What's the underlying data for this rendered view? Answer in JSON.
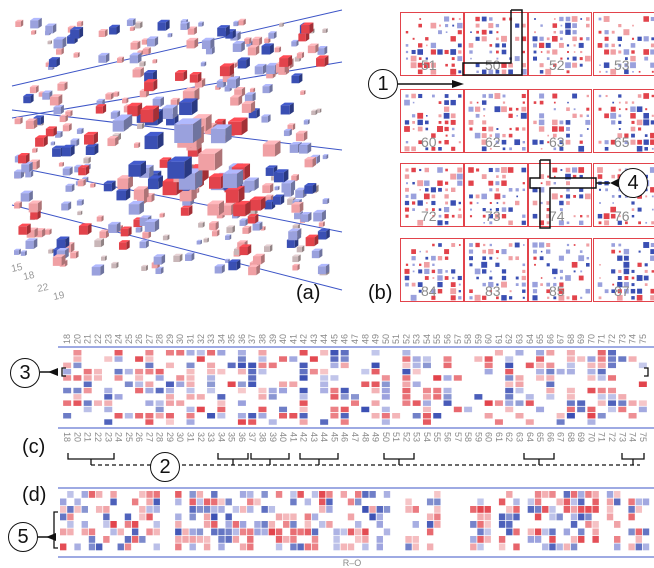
{
  "panels": {
    "a": {
      "label": "(a)",
      "axis_ticks": [
        "15",
        "18",
        "22",
        "19"
      ]
    },
    "b": {
      "label": "(b)",
      "matrices": [
        "51",
        "50",
        "52",
        "53",
        "60",
        "62",
        "63",
        "65",
        "72",
        "73",
        "74",
        "76",
        "84",
        "83",
        "85",
        "87"
      ]
    },
    "c": {
      "label": "(c)",
      "top_ticks": [
        "18",
        "20",
        "21",
        "22",
        "23",
        "24",
        "25",
        "26",
        "27",
        "28",
        "29",
        "30",
        "31",
        "32",
        "33",
        "34",
        "35",
        "36",
        "37",
        "38",
        "39",
        "40",
        "41",
        "42",
        "43",
        "44",
        "45",
        "46",
        "47",
        "48",
        "49",
        "50",
        "51",
        "52",
        "53",
        "54",
        "55",
        "56",
        "57",
        "58",
        "59",
        "60",
        "61",
        "62",
        "63",
        "64",
        "65",
        "66",
        "67",
        "68",
        "69",
        "70",
        "71",
        "72",
        "73",
        "74",
        "75"
      ]
    },
    "d": {
      "label": "(d)",
      "axis_label": "R–O"
    }
  },
  "callouts": [
    "1",
    "2",
    "3",
    "4",
    "5"
  ],
  "colors": {
    "red": "#e2434b",
    "pink": "#f0a0a4",
    "blue": "#3a4fb3",
    "lavender": "#9aa1dd",
    "line_blue": "#3d55c7",
    "frame_red": "#e2434b"
  }
}
